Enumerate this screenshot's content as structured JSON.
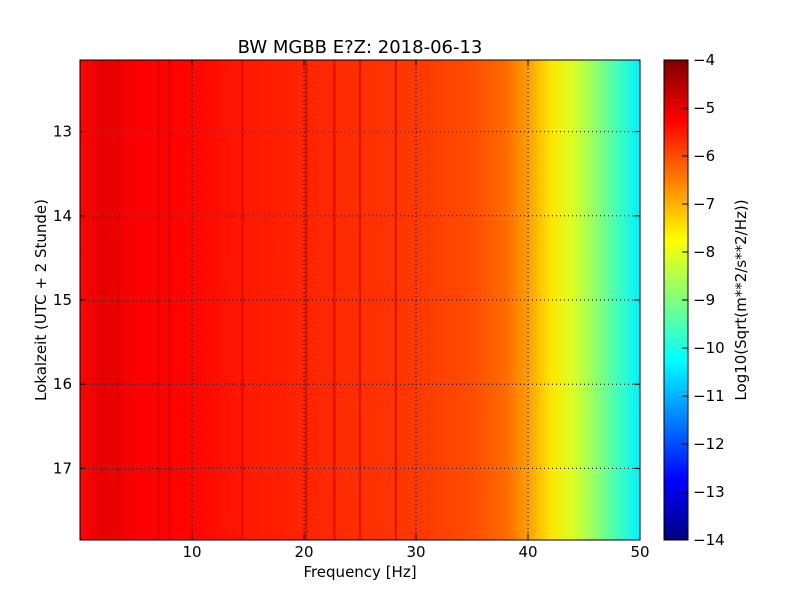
{
  "chart_data": {
    "type": "heatmap",
    "title": "BW MGBB E?Z: 2018-06-13",
    "xlabel": "Frequency [Hz]",
    "ylabel": "Lokalzeit (UTC + 2 Stunde)",
    "xlim": [
      0,
      50
    ],
    "ylim": [
      12.15,
      17.85
    ],
    "y_inverted": true,
    "grid": true,
    "x_ticks": [
      10,
      20,
      30,
      40,
      50
    ],
    "x_tick_labels": [
      "10",
      "20",
      "30",
      "40",
      "50"
    ],
    "y_ticks": [
      13,
      14,
      15,
      16,
      17
    ],
    "y_tick_labels": [
      "13",
      "14",
      "15",
      "16",
      "17"
    ],
    "colorbar": {
      "label": "Log10(Sqrt(m**2/s**2/Hz))",
      "range": [
        -14,
        -4
      ],
      "colormap": "jet",
      "ticks": [
        -4,
        -5,
        -6,
        -7,
        -8,
        -9,
        -10,
        -11,
        -12,
        -13,
        -14
      ],
      "tick_labels": [
        "−4",
        "−5",
        "−6",
        "−7",
        "−8",
        "−9",
        "−10",
        "−11",
        "−12",
        "−13",
        "−14"
      ]
    },
    "spectrum_profile": {
      "frequency_hz": [
        0,
        2,
        5,
        10,
        15,
        20,
        25,
        30,
        35,
        38,
        40,
        42,
        44,
        46,
        48,
        50
      ],
      "log10_amplitude": [
        -5.3,
        -5.0,
        -5.2,
        -5.3,
        -5.5,
        -5.6,
        -5.7,
        -5.8,
        -6.0,
        -6.3,
        -6.8,
        -7.5,
        -8.1,
        -8.8,
        -9.6,
        -10.4
      ]
    },
    "spectral_lines_hz": [
      3.4,
      7.0,
      8.0,
      14.5,
      20.2,
      22.7,
      25.0,
      28.2
    ],
    "colors": {
      "colormap_stops": [
        "#00007f",
        "#0000ff",
        "#007fff",
        "#00ffff",
        "#7fff7f",
        "#ffff00",
        "#ff7f00",
        "#ff0000",
        "#7f0000"
      ]
    }
  }
}
